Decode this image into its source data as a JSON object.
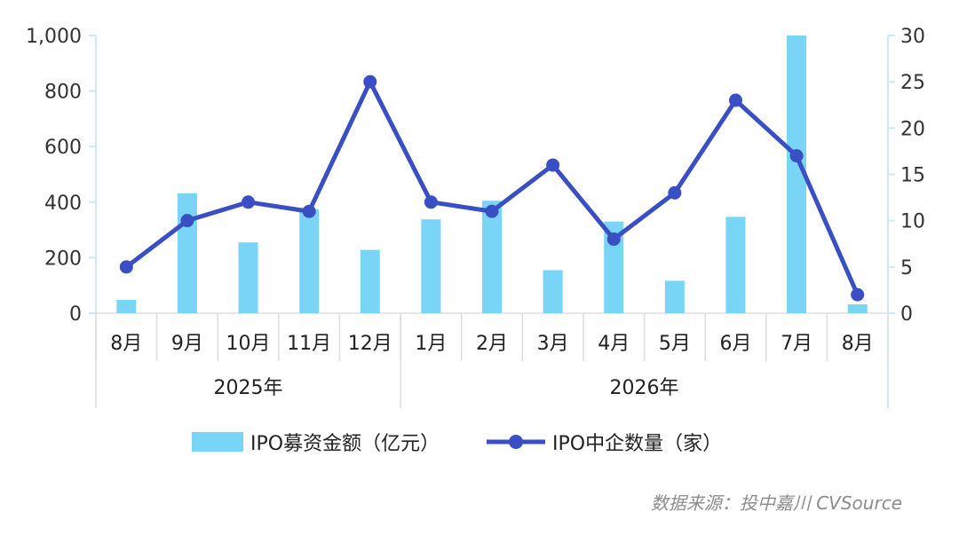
{
  "chart_data": {
    "type": "bar",
    "title": "",
    "categories": [
      "8月",
      "9月",
      "10月",
      "11月",
      "12月",
      "1月",
      "2月",
      "3月",
      "4月",
      "5月",
      "6月",
      "7月",
      "8月"
    ],
    "groups": [
      {
        "label": "2025年",
        "categories": [
          "8月",
          "9月",
          "10月",
          "11月",
          "12月"
        ]
      },
      {
        "label": "2026年",
        "categories": [
          "1月",
          "2月",
          "3月",
          "4月",
          "5月",
          "6月",
          "7月",
          "8月"
        ]
      }
    ],
    "series": [
      {
        "name": "IPO募资金额（亿元）",
        "type": "bar",
        "axis": "left",
        "color": "#79d5f5",
        "values": [
          48,
          432,
          255,
          375,
          228,
          338,
          405,
          155,
          330,
          117,
          347,
          1000,
          32
        ]
      },
      {
        "name": "IPO中企数量（家）",
        "type": "line",
        "axis": "right",
        "color": "#3a4fc4",
        "values": [
          5,
          10,
          12,
          11,
          25,
          12,
          11,
          16,
          8,
          13,
          23,
          17,
          2
        ]
      }
    ],
    "ylim_left": [
      0,
      1000
    ],
    "ylim_right": [
      0,
      30
    ],
    "yticks_left": [
      "0",
      "200",
      "400",
      "600",
      "800",
      "1,000"
    ],
    "yticks_right": [
      "0",
      "5",
      "10",
      "15",
      "20",
      "25",
      "30"
    ],
    "legend_position": "bottom",
    "grid": false,
    "source": "数据来源：投中嘉川 CVSource"
  }
}
